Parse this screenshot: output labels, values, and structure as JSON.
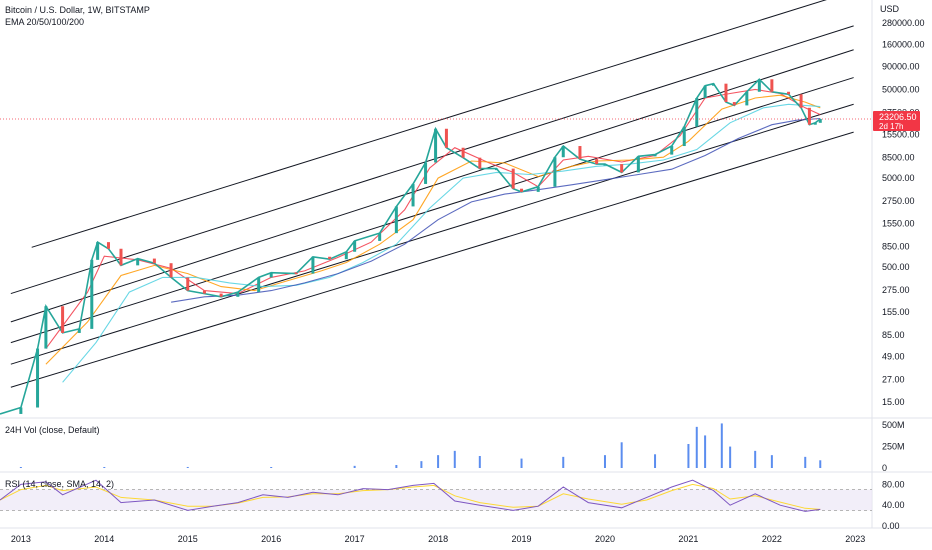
{
  "header": {
    "symbol": "Bitcoin / U.S. Dollar, 1W, BITSTAMP",
    "indicator": "EMA 20/50/100/200",
    "currency": "USD"
  },
  "price_tag": {
    "value": "23206.50",
    "countdown": "2d 17h",
    "color": "#f23645"
  },
  "volume_legend": "24H Vol (close, Default)",
  "rsi_legend": "RSI (14, close, SMA, 14, 2)",
  "colors": {
    "up": "#26a69a",
    "down": "#ef5350",
    "channel": "#131722",
    "ema20": "#f23645",
    "ema50": "#ff9800",
    "ema100": "#4dd0e1",
    "ema200": "#3f51b5",
    "volume": "#5b8def",
    "rsi": "#7e57c2",
    "rsi_ma": "#fdd835",
    "rsi_band": "#ede7f6"
  },
  "chart_data": [
    {
      "type": "line",
      "panel": "price",
      "scale": "log",
      "x_ticks": [
        "2013",
        "2014",
        "2015",
        "2016",
        "2017",
        "2018",
        "2019",
        "2020",
        "2021",
        "2022",
        "2023"
      ],
      "y_ticks": [
        "280000.00",
        "160000.00",
        "90000.00",
        "50000.00",
        "27500.00",
        "15500.00",
        "8500.00",
        "5000.00",
        "2750.00",
        "1550.00",
        "850.00",
        "500.00",
        "275.00",
        "155.00",
        "85.00",
        "49.00",
        "27.00",
        "15.00"
      ],
      "last_price": 23206.5,
      "series": [
        {
          "key": "price",
          "x": [
            2012.75,
            2013.0,
            2013.2,
            2013.3,
            2013.5,
            2013.7,
            2013.85,
            2013.92,
            2014.05,
            2014.2,
            2014.4,
            2014.6,
            2014.8,
            2015.0,
            2015.2,
            2015.4,
            2015.6,
            2015.85,
            2016.0,
            2016.3,
            2016.5,
            2016.7,
            2016.9,
            2017.0,
            2017.3,
            2017.5,
            2017.7,
            2017.85,
            2017.97,
            2018.1,
            2018.3,
            2018.5,
            2018.7,
            2018.9,
            2019.0,
            2019.2,
            2019.4,
            2019.5,
            2019.7,
            2019.9,
            2020.0,
            2020.2,
            2020.4,
            2020.6,
            2020.8,
            2020.95,
            2021.1,
            2021.2,
            2021.3,
            2021.45,
            2021.55,
            2021.7,
            2021.85,
            2022.0,
            2022.2,
            2022.35,
            2022.45,
            2022.52,
            2022.58
          ],
          "y": [
            11,
            13,
            60,
            180,
            90,
            100,
            600,
            950,
            800,
            520,
            620,
            550,
            380,
            270,
            250,
            230,
            260,
            380,
            430,
            420,
            650,
            610,
            740,
            980,
            1200,
            2400,
            4300,
            7500,
            18000,
            11000,
            8500,
            6400,
            6400,
            3800,
            3500,
            4000,
            8600,
            11500,
            8200,
            7200,
            7200,
            5800,
            8800,
            9200,
            11500,
            19000,
            40000,
            55000,
            58000,
            36000,
            33000,
            47000,
            65000,
            47000,
            44000,
            31000,
            20000,
            21000,
            23206
          ]
        },
        {
          "key": "ema20",
          "x": [
            2013.3,
            2013.8,
            2014.0,
            2014.4,
            2014.8,
            2015.2,
            2015.6,
            2016.0,
            2016.4,
            2016.8,
            2017.2,
            2017.6,
            2017.9,
            2018.2,
            2018.6,
            2018.9,
            2019.2,
            2019.5,
            2019.8,
            2020.2,
            2020.6,
            2020.9,
            2021.2,
            2021.5,
            2021.8,
            2022.1,
            2022.4,
            2022.58
          ],
          "y": [
            60,
            260,
            660,
            600,
            480,
            270,
            250,
            380,
            450,
            640,
            950,
            2200,
            6500,
            11000,
            7500,
            5800,
            4000,
            8000,
            8800,
            7600,
            9000,
            15000,
            40000,
            45000,
            50000,
            45000,
            31000,
            26000
          ]
        },
        {
          "key": "ema50",
          "x": [
            2013.3,
            2013.8,
            2014.2,
            2014.6,
            2015.0,
            2015.4,
            2015.8,
            2016.2,
            2016.6,
            2016.9,
            2017.3,
            2017.7,
            2018.0,
            2018.4,
            2018.8,
            2019.2,
            2019.6,
            2019.9,
            2020.3,
            2020.7,
            2021.0,
            2021.4,
            2021.8,
            2022.1,
            2022.4,
            2022.58
          ],
          "y": [
            40,
            120,
            400,
            520,
            420,
            300,
            270,
            350,
            450,
            560,
            900,
            1700,
            5000,
            7800,
            7400,
            5200,
            6800,
            7800,
            8000,
            8600,
            13000,
            30000,
            40000,
            43000,
            36000,
            31000
          ]
        },
        {
          "key": "ema100",
          "x": [
            2013.5,
            2013.9,
            2014.3,
            2014.7,
            2015.1,
            2015.5,
            2015.9,
            2016.3,
            2016.7,
            2017.1,
            2017.5,
            2017.9,
            2018.3,
            2018.7,
            2019.1,
            2019.5,
            2019.9,
            2020.3,
            2020.7,
            2021.1,
            2021.5,
            2021.9,
            2022.2,
            2022.58
          ],
          "y": [
            25,
            70,
            260,
            380,
            380,
            330,
            300,
            310,
            380,
            560,
            900,
            2300,
            5000,
            5800,
            5500,
            6000,
            6800,
            7200,
            8000,
            10500,
            21000,
            31000,
            34000,
            32000
          ]
        },
        {
          "key": "ema200",
          "x": [
            2014.8,
            2015.2,
            2015.6,
            2016.0,
            2016.4,
            2016.8,
            2017.2,
            2017.6,
            2018.0,
            2018.4,
            2018.8,
            2019.2,
            2019.6,
            2020.0,
            2020.4,
            2020.8,
            2021.2,
            2021.6,
            2022.0,
            2022.3,
            2022.58
          ],
          "y": [
            200,
            230,
            240,
            270,
            330,
            420,
            580,
            900,
            1700,
            2700,
            3300,
            3700,
            4200,
            4800,
            5500,
            6300,
            9000,
            14000,
            20000,
            22500,
            23500
          ]
        }
      ],
      "channel_lines": [
        {
          "x": [
            2013.13,
            2022.98
          ],
          "y": [
            830,
            640000
          ]
        },
        {
          "x": [
            2012.88,
            2022.98
          ],
          "y": [
            250,
            260000
          ]
        },
        {
          "x": [
            2012.88,
            2022.98
          ],
          "y": [
            120,
            140000
          ]
        },
        {
          "x": [
            2012.88,
            2022.98
          ],
          "y": [
            70,
            68000
          ]
        },
        {
          "x": [
            2012.88,
            2022.98
          ],
          "y": [
            40,
            34000
          ]
        },
        {
          "x": [
            2012.88,
            2022.98
          ],
          "y": [
            22,
            16500
          ]
        }
      ]
    },
    {
      "type": "bar",
      "panel": "volume",
      "title": "24H Vol (close, Default)",
      "y_ticks": [
        "500M",
        "250M",
        "0"
      ],
      "x": [
        2013.0,
        2014.0,
        2015.0,
        2016.0,
        2017.0,
        2017.5,
        2017.8,
        2018.0,
        2018.2,
        2018.5,
        2019.0,
        2019.5,
        2020.0,
        2020.2,
        2020.6,
        2021.0,
        2021.1,
        2021.2,
        2021.4,
        2021.5,
        2021.8,
        2022.0,
        2022.4,
        2022.58
      ],
      "values": [
        3,
        8,
        12,
        10,
        25,
        35,
        80,
        150,
        200,
        140,
        110,
        130,
        150,
        300,
        160,
        280,
        480,
        380,
        520,
        250,
        200,
        150,
        130,
        90
      ],
      "ylim": [
        0,
        560
      ]
    },
    {
      "type": "line",
      "panel": "rsi",
      "title": "RSI (14, close, SMA, 14, 2)",
      "y_ticks": [
        "80.00",
        "40.00",
        "0.00"
      ],
      "x": [
        2012.75,
        2013.0,
        2013.3,
        2013.5,
        2013.9,
        2014.2,
        2014.6,
        2015.0,
        2015.3,
        2015.6,
        2015.9,
        2016.2,
        2016.5,
        2016.8,
        2017.1,
        2017.4,
        2017.7,
        2017.95,
        2018.2,
        2018.5,
        2018.9,
        2019.2,
        2019.5,
        2019.8,
        2020.2,
        2020.5,
        2020.8,
        2021.05,
        2021.3,
        2021.5,
        2021.8,
        2022.1,
        2022.4,
        2022.58
      ],
      "y": [
        50,
        80,
        85,
        60,
        88,
        45,
        50,
        30,
        38,
        45,
        60,
        55,
        65,
        60,
        72,
        70,
        78,
        82,
        48,
        40,
        30,
        38,
        75,
        45,
        35,
        55,
        75,
        88,
        68,
        40,
        62,
        40,
        28,
        32
      ],
      "ma": [
        50,
        70,
        78,
        68,
        75,
        55,
        50,
        38,
        38,
        44,
        55,
        56,
        62,
        62,
        68,
        70,
        75,
        78,
        58,
        45,
        36,
        38,
        62,
        52,
        42,
        50,
        68,
        80,
        72,
        52,
        58,
        46,
        34,
        32
      ],
      "ylim": [
        0,
        100
      ]
    }
  ]
}
